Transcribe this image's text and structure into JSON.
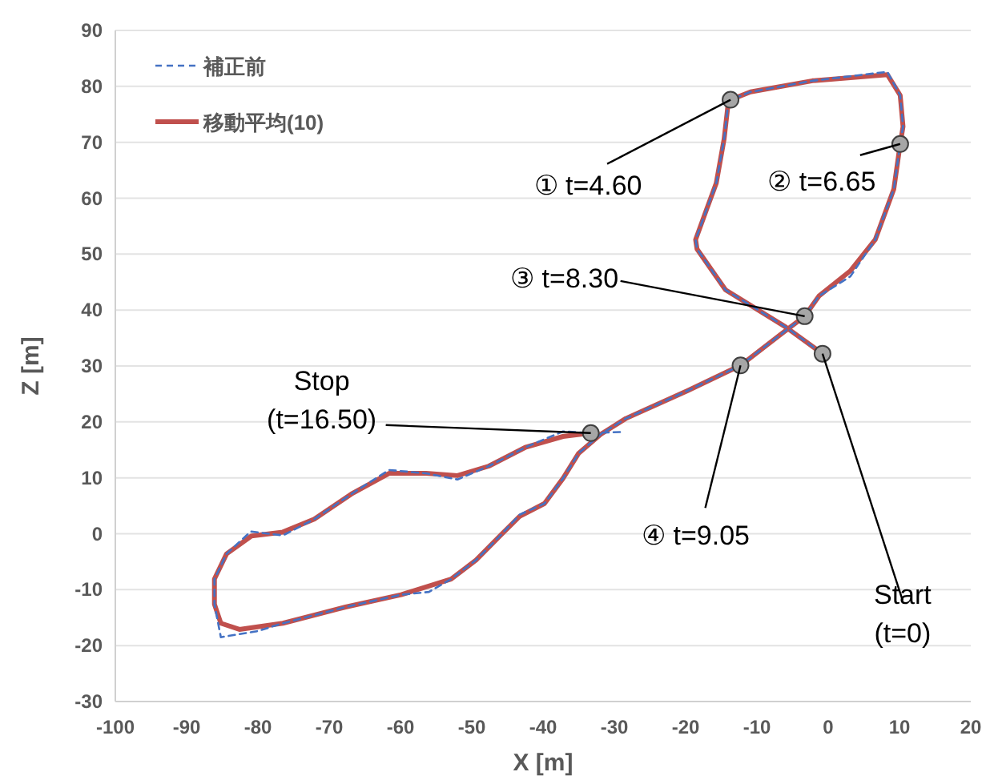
{
  "chart_data": {
    "type": "line",
    "xlabel": "X [m]",
    "ylabel": "Z [m]",
    "xlim": [
      -100,
      20
    ],
    "ylim": [
      -30,
      90
    ],
    "xticks": [
      -100,
      -90,
      -80,
      -70,
      -60,
      -50,
      -40,
      -30,
      -20,
      -10,
      0,
      10,
      20
    ],
    "yticks": [
      -30,
      -20,
      -10,
      0,
      10,
      20,
      30,
      40,
      50,
      60,
      70,
      80,
      90
    ],
    "grid": "y",
    "legend": "top left",
    "series": [
      {
        "name": "補正前",
        "color": "#4472c4",
        "line_style": "dashed",
        "x": [
          -0.8,
          -6,
          -14.4,
          -18.4,
          -18.6,
          -17,
          -15.7,
          -14.6,
          -14,
          -13.7,
          -10.9,
          -2.2,
          8.3,
          10.1,
          10.5,
          10.1,
          9.2,
          6.6,
          3.1,
          -1.3,
          -3.3,
          -6.6,
          -12.3,
          -19.7,
          -28.4,
          -31.9,
          -35,
          -37.2,
          -39.8,
          -43.3,
          -45.9,
          -49.4,
          -52.9,
          -56,
          -59.9,
          -67.7,
          -76.5,
          -80,
          -85.2,
          -86.1,
          -86.1,
          -84.4,
          -81,
          -76.5,
          -72.1,
          -66.9,
          -61.6,
          -56.4,
          -52,
          -47.6,
          -42.4,
          -37.2,
          -33.3,
          -28.8
        ],
        "values": [
          32.2,
          37,
          43.6,
          50.9,
          52.6,
          58.2,
          62.7,
          70.6,
          77.3,
          77.6,
          79,
          81,
          82.6,
          78.4,
          72.8,
          69.7,
          61.6,
          52.6,
          46,
          42.5,
          38.9,
          35.7,
          30.1,
          25.6,
          20.6,
          17.8,
          14.4,
          9.9,
          5.4,
          3.4,
          -0.2,
          -4.7,
          -8.1,
          -10.4,
          -10.9,
          -13.1,
          -16,
          -17.4,
          -18.5,
          -12.6,
          -8.1,
          -3.6,
          0.4,
          -0.3,
          2.6,
          7.1,
          11.4,
          10.8,
          9.7,
          12.1,
          15.5,
          18.3,
          18,
          18.2
        ]
      },
      {
        "name": "移動平均(10)",
        "color": "#c0504d",
        "line_style": "solid",
        "x": [
          -0.8,
          -6,
          -14.4,
          -18.4,
          -18.6,
          -17,
          -15.7,
          -14.6,
          -14,
          -13.7,
          -10.9,
          -2.2,
          8.3,
          10.1,
          10.5,
          10.1,
          9.2,
          6.6,
          3.1,
          -1.3,
          -3.3,
          -6.6,
          -12.3,
          -19.7,
          -28.4,
          -31.9,
          -35,
          -37.2,
          -39.8,
          -43.3,
          -45.9,
          -49.4,
          -52.9,
          -59.9,
          -67.7,
          -76.5,
          -82.6,
          -85.2,
          -86.1,
          -86.1,
          -84.4,
          -80.9,
          -76.5,
          -72.1,
          -66.9,
          -61.6,
          -56.4,
          -52,
          -47.6,
          -42.4,
          -37.2,
          -33.3
        ],
        "values": [
          32.2,
          37,
          43.6,
          50.9,
          52.6,
          58.2,
          62.7,
          70.6,
          77.3,
          77.6,
          79,
          81,
          82.1,
          78.4,
          72.8,
          69.7,
          61.6,
          52.6,
          47,
          42.5,
          38.9,
          35.7,
          30.1,
          25.6,
          20.6,
          17.8,
          14.4,
          9.9,
          5.4,
          3.1,
          -0.2,
          -4.7,
          -8.1,
          -10.9,
          -13.1,
          -16,
          -17.1,
          -16,
          -12.6,
          -8.1,
          -3.6,
          -0.4,
          0.3,
          2.6,
          7.1,
          10.8,
          10.8,
          10.4,
          12.1,
          15.5,
          17.4,
          18
        ]
      },
      {
        "type": "scatter",
        "color": "#a6a6a6",
        "marker": "circle",
        "x": [
          -13.7,
          10.1,
          -3.3,
          -12.3,
          -0.8,
          -33.3
        ],
        "values": [
          77.6,
          69.7,
          38.9,
          30.1,
          32.2,
          18
        ]
      }
    ],
    "annotations": [
      {
        "text": "① t=4.60",
        "x": -13.7,
        "y": 77.6
      },
      {
        "text": "② t=6.65",
        "x": 10.1,
        "y": 69.7
      },
      {
        "text": "③ t=8.30",
        "x": -3.3,
        "y": 38.9
      },
      {
        "text": "④ t=9.05",
        "x": -12.3,
        "y": 30.1
      },
      {
        "text": "Start (t=0)",
        "x": -0.8,
        "y": 32.2
      },
      {
        "text": "Stop (t=16.50)",
        "x": -33.3,
        "y": 18
      }
    ]
  }
}
